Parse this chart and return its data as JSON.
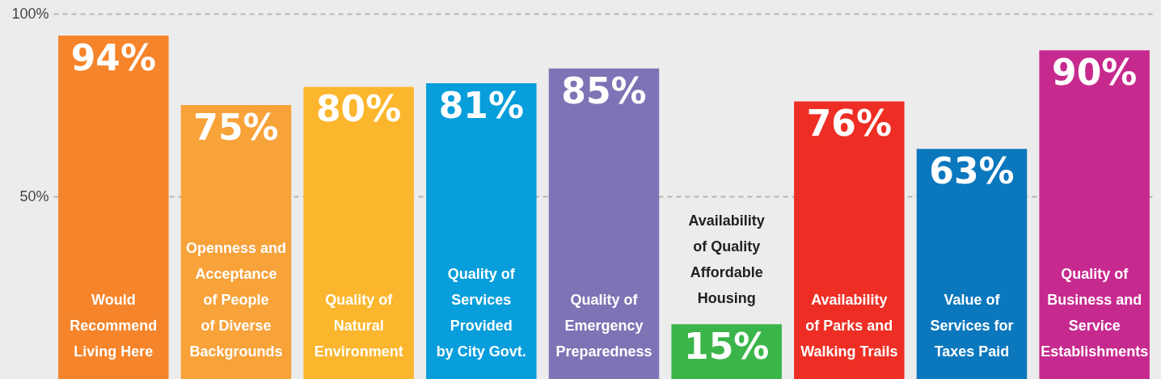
{
  "chart_data": {
    "type": "bar",
    "categories": [
      "Would\nRecommend\nLiving Here",
      "Openness and\nAcceptance\nof People\nof Diverse\nBackgrounds",
      "Quality of\nNatural\nEnvironment",
      "Quality of\nServices\nProvided\nby City Govt.",
      "Quality of\nEmergency\nPreparedness",
      "Availability\nof Quality\nAffordable\nHousing",
      "Availability\nof Parks and\nWalking Trails",
      "Value of\nServices for\nTaxes Paid",
      "Quality of\nBusiness and\nService\nEstablishments"
    ],
    "values": [
      94,
      75,
      80,
      81,
      85,
      15,
      76,
      63,
      90
    ],
    "colors": [
      "#f5842b",
      "#f8a23a",
      "#fbb62e",
      "#079edb",
      "#7c74b5",
      "#3bb54a",
      "#ee2e24",
      "#0b77bd",
      "#c72a8e"
    ],
    "value_labels": [
      "94%",
      "75%",
      "80%",
      "81%",
      "85%",
      "15%",
      "76%",
      "63%",
      "90%"
    ],
    "ylim": [
      0,
      100
    ],
    "yticks": [
      {
        "value": 50,
        "label": "50%"
      },
      {
        "value": 100,
        "label": "100%"
      }
    ],
    "grid": "y",
    "tick_labels": "y"
  }
}
